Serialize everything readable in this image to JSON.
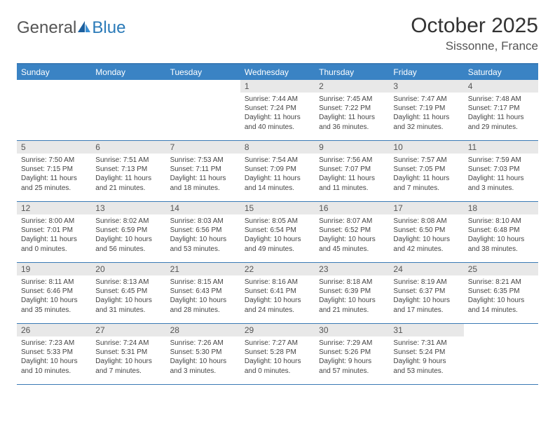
{
  "brand": {
    "general": "General",
    "blue": "Blue"
  },
  "title": "October 2025",
  "location": "Sissonne, France",
  "colors": {
    "header_bar": "#3a83c4",
    "border": "#3a7ab5",
    "daynum_bg": "#e8e8e8",
    "text": "#333333",
    "logo_blue": "#2a7ab8"
  },
  "weekdays": [
    "Sunday",
    "Monday",
    "Tuesday",
    "Wednesday",
    "Thursday",
    "Friday",
    "Saturday"
  ],
  "weeks": [
    [
      {
        "n": "",
        "lines": []
      },
      {
        "n": "",
        "lines": []
      },
      {
        "n": "",
        "lines": []
      },
      {
        "n": "1",
        "lines": [
          "Sunrise: 7:44 AM",
          "Sunset: 7:24 PM",
          "Daylight: 11 hours",
          "and 40 minutes."
        ]
      },
      {
        "n": "2",
        "lines": [
          "Sunrise: 7:45 AM",
          "Sunset: 7:22 PM",
          "Daylight: 11 hours",
          "and 36 minutes."
        ]
      },
      {
        "n": "3",
        "lines": [
          "Sunrise: 7:47 AM",
          "Sunset: 7:19 PM",
          "Daylight: 11 hours",
          "and 32 minutes."
        ]
      },
      {
        "n": "4",
        "lines": [
          "Sunrise: 7:48 AM",
          "Sunset: 7:17 PM",
          "Daylight: 11 hours",
          "and 29 minutes."
        ]
      }
    ],
    [
      {
        "n": "5",
        "lines": [
          "Sunrise: 7:50 AM",
          "Sunset: 7:15 PM",
          "Daylight: 11 hours",
          "and 25 minutes."
        ]
      },
      {
        "n": "6",
        "lines": [
          "Sunrise: 7:51 AM",
          "Sunset: 7:13 PM",
          "Daylight: 11 hours",
          "and 21 minutes."
        ]
      },
      {
        "n": "7",
        "lines": [
          "Sunrise: 7:53 AM",
          "Sunset: 7:11 PM",
          "Daylight: 11 hours",
          "and 18 minutes."
        ]
      },
      {
        "n": "8",
        "lines": [
          "Sunrise: 7:54 AM",
          "Sunset: 7:09 PM",
          "Daylight: 11 hours",
          "and 14 minutes."
        ]
      },
      {
        "n": "9",
        "lines": [
          "Sunrise: 7:56 AM",
          "Sunset: 7:07 PM",
          "Daylight: 11 hours",
          "and 11 minutes."
        ]
      },
      {
        "n": "10",
        "lines": [
          "Sunrise: 7:57 AM",
          "Sunset: 7:05 PM",
          "Daylight: 11 hours",
          "and 7 minutes."
        ]
      },
      {
        "n": "11",
        "lines": [
          "Sunrise: 7:59 AM",
          "Sunset: 7:03 PM",
          "Daylight: 11 hours",
          "and 3 minutes."
        ]
      }
    ],
    [
      {
        "n": "12",
        "lines": [
          "Sunrise: 8:00 AM",
          "Sunset: 7:01 PM",
          "Daylight: 11 hours",
          "and 0 minutes."
        ]
      },
      {
        "n": "13",
        "lines": [
          "Sunrise: 8:02 AM",
          "Sunset: 6:59 PM",
          "Daylight: 10 hours",
          "and 56 minutes."
        ]
      },
      {
        "n": "14",
        "lines": [
          "Sunrise: 8:03 AM",
          "Sunset: 6:56 PM",
          "Daylight: 10 hours",
          "and 53 minutes."
        ]
      },
      {
        "n": "15",
        "lines": [
          "Sunrise: 8:05 AM",
          "Sunset: 6:54 PM",
          "Daylight: 10 hours",
          "and 49 minutes."
        ]
      },
      {
        "n": "16",
        "lines": [
          "Sunrise: 8:07 AM",
          "Sunset: 6:52 PM",
          "Daylight: 10 hours",
          "and 45 minutes."
        ]
      },
      {
        "n": "17",
        "lines": [
          "Sunrise: 8:08 AM",
          "Sunset: 6:50 PM",
          "Daylight: 10 hours",
          "and 42 minutes."
        ]
      },
      {
        "n": "18",
        "lines": [
          "Sunrise: 8:10 AM",
          "Sunset: 6:48 PM",
          "Daylight: 10 hours",
          "and 38 minutes."
        ]
      }
    ],
    [
      {
        "n": "19",
        "lines": [
          "Sunrise: 8:11 AM",
          "Sunset: 6:46 PM",
          "Daylight: 10 hours",
          "and 35 minutes."
        ]
      },
      {
        "n": "20",
        "lines": [
          "Sunrise: 8:13 AM",
          "Sunset: 6:45 PM",
          "Daylight: 10 hours",
          "and 31 minutes."
        ]
      },
      {
        "n": "21",
        "lines": [
          "Sunrise: 8:15 AM",
          "Sunset: 6:43 PM",
          "Daylight: 10 hours",
          "and 28 minutes."
        ]
      },
      {
        "n": "22",
        "lines": [
          "Sunrise: 8:16 AM",
          "Sunset: 6:41 PM",
          "Daylight: 10 hours",
          "and 24 minutes."
        ]
      },
      {
        "n": "23",
        "lines": [
          "Sunrise: 8:18 AM",
          "Sunset: 6:39 PM",
          "Daylight: 10 hours",
          "and 21 minutes."
        ]
      },
      {
        "n": "24",
        "lines": [
          "Sunrise: 8:19 AM",
          "Sunset: 6:37 PM",
          "Daylight: 10 hours",
          "and 17 minutes."
        ]
      },
      {
        "n": "25",
        "lines": [
          "Sunrise: 8:21 AM",
          "Sunset: 6:35 PM",
          "Daylight: 10 hours",
          "and 14 minutes."
        ]
      }
    ],
    [
      {
        "n": "26",
        "lines": [
          "Sunrise: 7:23 AM",
          "Sunset: 5:33 PM",
          "Daylight: 10 hours",
          "and 10 minutes."
        ]
      },
      {
        "n": "27",
        "lines": [
          "Sunrise: 7:24 AM",
          "Sunset: 5:31 PM",
          "Daylight: 10 hours",
          "and 7 minutes."
        ]
      },
      {
        "n": "28",
        "lines": [
          "Sunrise: 7:26 AM",
          "Sunset: 5:30 PM",
          "Daylight: 10 hours",
          "and 3 minutes."
        ]
      },
      {
        "n": "29",
        "lines": [
          "Sunrise: 7:27 AM",
          "Sunset: 5:28 PM",
          "Daylight: 10 hours",
          "and 0 minutes."
        ]
      },
      {
        "n": "30",
        "lines": [
          "Sunrise: 7:29 AM",
          "Sunset: 5:26 PM",
          "Daylight: 9 hours",
          "and 57 minutes."
        ]
      },
      {
        "n": "31",
        "lines": [
          "Sunrise: 7:31 AM",
          "Sunset: 5:24 PM",
          "Daylight: 9 hours",
          "and 53 minutes."
        ]
      },
      {
        "n": "",
        "lines": []
      }
    ]
  ]
}
